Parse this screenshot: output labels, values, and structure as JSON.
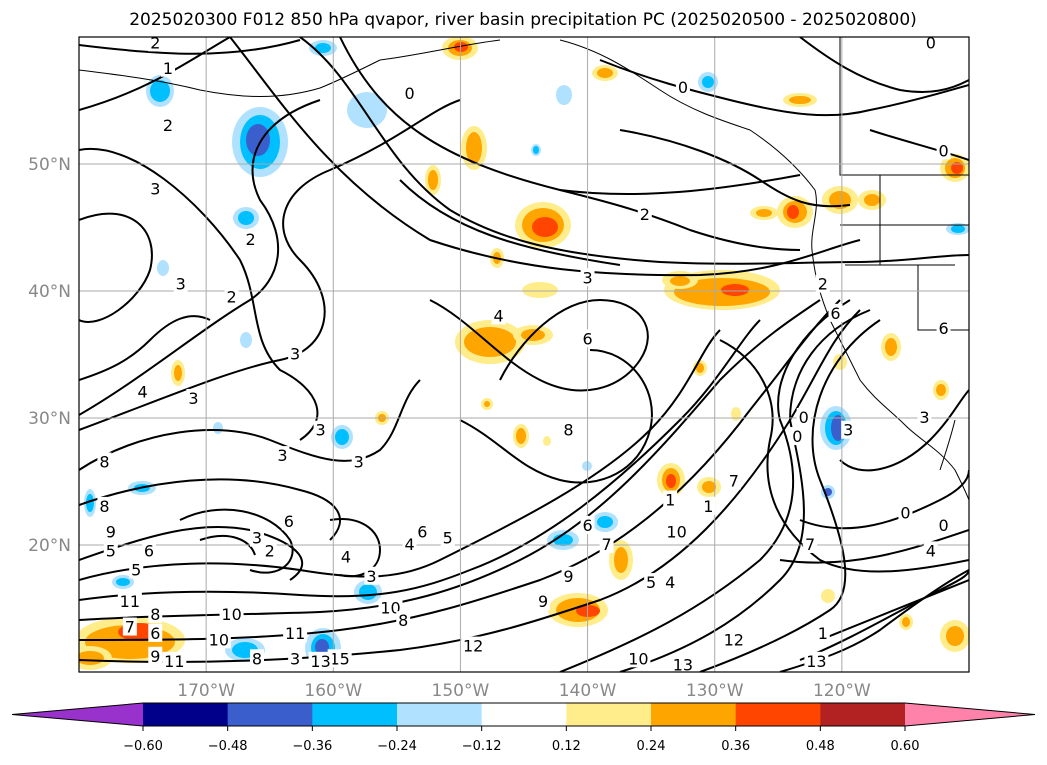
{
  "chart_data": {
    "type": "heatmap",
    "title": "2025020300 F012 850 hPa qvapor, river basin precipitation PC (2025020500 - 2025020800)",
    "lon_ticks": [
      {
        "lon": -170,
        "label": "170°W"
      },
      {
        "lon": -160,
        "label": "160°W"
      },
      {
        "lon": -150,
        "label": "150°W"
      },
      {
        "lon": -140,
        "label": "140°W"
      },
      {
        "lon": -130,
        "label": "130°W"
      },
      {
        "lon": -120,
        "label": "120°W"
      }
    ],
    "lat_ticks": [
      {
        "lat": 50,
        "label": "50°N"
      },
      {
        "lat": 40,
        "label": "40°N"
      },
      {
        "lat": 30,
        "label": "30°N"
      },
      {
        "lat": 20,
        "label": "20°N"
      }
    ],
    "lon_range": [
      -180,
      -110
    ],
    "lat_range": [
      10,
      60
    ],
    "grid": true,
    "colorbar": {
      "levels": [
        -0.6,
        -0.48,
        -0.36,
        -0.24,
        -0.12,
        0.12,
        0.24,
        0.36,
        0.48,
        0.6
      ],
      "labels": [
        "−0.60",
        "−0.48",
        "−0.36",
        "−0.24",
        "−0.12",
        "0.12",
        "0.24",
        "0.36",
        "0.48",
        "0.60"
      ],
      "colors": [
        "#9932cc",
        "#00008b",
        "#3a5fcd",
        "#00bfff",
        "#b0e2ff",
        "#ffffff",
        "#ffec8b",
        "#ffa500",
        "#ff4500",
        "#b22222",
        "#ff82ab"
      ],
      "extend": "both"
    },
    "contour_labels": [
      {
        "lon": -174,
        "lat": 59.5,
        "text": "2"
      },
      {
        "lon": -173,
        "lat": 57.5,
        "text": "1"
      },
      {
        "lon": -173,
        "lat": 53,
        "text": "2"
      },
      {
        "lon": -174,
        "lat": 48,
        "text": "3"
      },
      {
        "lon": -166.5,
        "lat": 44,
        "text": "2"
      },
      {
        "lon": -172,
        "lat": 40.5,
        "text": "3"
      },
      {
        "lon": -168,
        "lat": 39.5,
        "text": "2"
      },
      {
        "lon": -175,
        "lat": 32,
        "text": "4"
      },
      {
        "lon": -171,
        "lat": 31.5,
        "text": "3"
      },
      {
        "lon": -163,
        "lat": 35,
        "text": "3"
      },
      {
        "lon": -154,
        "lat": 55.5,
        "text": "0"
      },
      {
        "lon": -132.5,
        "lat": 56,
        "text": "0"
      },
      {
        "lon": -135.5,
        "lat": 46,
        "text": "2"
      },
      {
        "lon": -140,
        "lat": 41,
        "text": "3"
      },
      {
        "lon": -147,
        "lat": 38,
        "text": "4"
      },
      {
        "lon": -140,
        "lat": 36.2,
        "text": "6"
      },
      {
        "lon": -121.5,
        "lat": 40.5,
        "text": "2"
      },
      {
        "lon": -120.5,
        "lat": 38.2,
        "text": "6"
      },
      {
        "lon": -141.5,
        "lat": 29,
        "text": "8"
      },
      {
        "lon": -164,
        "lat": 27,
        "text": "3"
      },
      {
        "lon": -161,
        "lat": 29,
        "text": "3"
      },
      {
        "lon": -158,
        "lat": 26.5,
        "text": "3"
      },
      {
        "lon": -178,
        "lat": 26.5,
        "text": "8"
      },
      {
        "lon": -178,
        "lat": 23,
        "text": "8"
      },
      {
        "lon": -177.5,
        "lat": 21,
        "text": "9"
      },
      {
        "lon": -166,
        "lat": 20.5,
        "text": "3"
      },
      {
        "lon": -165,
        "lat": 19.5,
        "text": "2"
      },
      {
        "lon": -163.5,
        "lat": 21.8,
        "text": "6"
      },
      {
        "lon": -177.5,
        "lat": 19.5,
        "text": "5"
      },
      {
        "lon": -174.5,
        "lat": 19.5,
        "text": "6"
      },
      {
        "lon": -175.5,
        "lat": 18,
        "text": "5"
      },
      {
        "lon": -159,
        "lat": 19,
        "text": "4"
      },
      {
        "lon": -154,
        "lat": 20,
        "text": "4"
      },
      {
        "lon": -151,
        "lat": 20.5,
        "text": "5"
      },
      {
        "lon": -153,
        "lat": 21,
        "text": "6"
      },
      {
        "lon": -157,
        "lat": 17.5,
        "text": "3"
      },
      {
        "lon": -140,
        "lat": 21.5,
        "text": "6"
      },
      {
        "lon": -141.5,
        "lat": 17.5,
        "text": "9"
      },
      {
        "lon": -138.5,
        "lat": 20,
        "text": "7"
      },
      {
        "lon": -133,
        "lat": 21,
        "text": "10"
      },
      {
        "lon": -133.5,
        "lat": 23.5,
        "text": "1"
      },
      {
        "lon": -130.5,
        "lat": 23,
        "text": "1"
      },
      {
        "lon": -128.5,
        "lat": 25,
        "text": "7"
      },
      {
        "lon": -135,
        "lat": 17,
        "text": "5"
      },
      {
        "lon": -133.5,
        "lat": 17,
        "text": "4"
      },
      {
        "lon": -176,
        "lat": 15.5,
        "text": "11"
      },
      {
        "lon": -174,
        "lat": 14.5,
        "text": "8"
      },
      {
        "lon": -176,
        "lat": 13.5,
        "text": "7"
      },
      {
        "lon": -174,
        "lat": 13,
        "text": "6"
      },
      {
        "lon": -168,
        "lat": 14.5,
        "text": "10"
      },
      {
        "lon": -169,
        "lat": 12.5,
        "text": "10"
      },
      {
        "lon": -174,
        "lat": 11.2,
        "text": "9"
      },
      {
        "lon": -172.5,
        "lat": 10.8,
        "text": "11"
      },
      {
        "lon": -166,
        "lat": 11,
        "text": "8"
      },
      {
        "lon": -163,
        "lat": 11,
        "text": "3"
      },
      {
        "lon": -159.5,
        "lat": 11,
        "text": "15"
      },
      {
        "lon": -161,
        "lat": 10.8,
        "text": "13"
      },
      {
        "lon": -163,
        "lat": 13,
        "text": "11"
      },
      {
        "lon": -155.5,
        "lat": 15,
        "text": "10"
      },
      {
        "lon": -154.5,
        "lat": 14,
        "text": "8"
      },
      {
        "lon": -149,
        "lat": 12,
        "text": "12"
      },
      {
        "lon": -143.5,
        "lat": 15.5,
        "text": "9"
      },
      {
        "lon": -136,
        "lat": 11,
        "text": "10"
      },
      {
        "lon": -128.5,
        "lat": 12.5,
        "text": "12"
      },
      {
        "lon": -132.5,
        "lat": 10.5,
        "text": "13"
      },
      {
        "lon": -122,
        "lat": 10.8,
        "text": "13"
      },
      {
        "lon": -119.5,
        "lat": 29,
        "text": "3"
      },
      {
        "lon": -113.5,
        "lat": 30,
        "text": "3"
      },
      {
        "lon": -123,
        "lat": 30,
        "text": "0"
      },
      {
        "lon": -123.5,
        "lat": 28.5,
        "text": "0"
      },
      {
        "lon": -115,
        "lat": 22.5,
        "text": "0"
      },
      {
        "lon": -112,
        "lat": 21.5,
        "text": "0"
      },
      {
        "lon": -112,
        "lat": 37,
        "text": "6"
      },
      {
        "lon": -112,
        "lat": 51,
        "text": "0"
      },
      {
        "lon": -113,
        "lat": 59.5,
        "text": "0"
      },
      {
        "lon": -122.5,
        "lat": 20,
        "text": "7"
      },
      {
        "lon": -113,
        "lat": 19.5,
        "text": "4"
      },
      {
        "lon": -121.5,
        "lat": 13,
        "text": "1"
      }
    ]
  }
}
